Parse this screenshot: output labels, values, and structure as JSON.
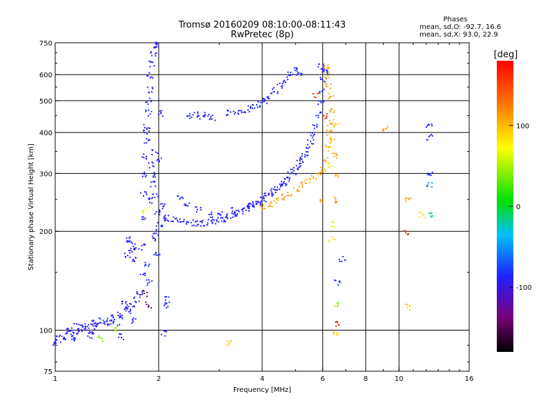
{
  "chart_data": {
    "type": "scatter",
    "title": "Tromsø 20160209 08:10:00-08:11:43",
    "subtitle": "RwPretec (8p)",
    "xlabel": "Frequency [MHz]",
    "ylabel": "Stationary phase Virtual Height [km]",
    "x_scale": "log",
    "y_scale": "log",
    "xlim": [
      1,
      16
    ],
    "ylim": [
      75,
      750
    ],
    "x_ticks": [
      1,
      2,
      4,
      6,
      8,
      10,
      16
    ],
    "x_tick_labels": [
      "1",
      "2",
      "4",
      "6",
      "8",
      "10",
      "16"
    ],
    "y_ticks": [
      75,
      100,
      200,
      300,
      400,
      500,
      600,
      750
    ],
    "y_tick_labels": [
      "75",
      "100",
      "200",
      "300",
      "400",
      "500",
      "600",
      "750"
    ],
    "grid": true,
    "colorbar": {
      "label": "[deg]",
      "range": [
        -180,
        180
      ],
      "ticks": [
        100,
        0,
        -100
      ],
      "tick_labels": [
        "100",
        "0",
        "-100"
      ],
      "colors": [
        "#000000",
        "#7a007a",
        "#2020ff",
        "#00c0ff",
        "#00e000",
        "#ffff00",
        "#ff8000",
        "#ff0000"
      ]
    },
    "stats": {
      "heading": "Phases",
      "line_o": "mean, sd,O: -92.7, 16.6",
      "line_x": "mean, sd,X:  93.0, 22.9"
    },
    "series": [
      {
        "values": [
          [
            1.0,
            92,
            -100
          ],
          [
            1.02,
            96,
            -105
          ],
          [
            1.05,
            94,
            -98
          ],
          [
            1.08,
            99,
            -110
          ],
          [
            1.1,
            101,
            -95
          ],
          [
            1.13,
            97,
            -102
          ],
          [
            1.15,
            103,
            -100
          ],
          [
            1.18,
            99,
            -108
          ],
          [
            1.2,
            102,
            -96
          ],
          [
            1.22,
            105,
            -100
          ],
          [
            1.25,
            100,
            -103
          ],
          [
            1.28,
            106,
            -99
          ],
          [
            1.3,
            103,
            -101
          ],
          [
            1.33,
            104,
            -107
          ],
          [
            1.36,
            108,
            -94
          ],
          [
            1.4,
            105,
            -100
          ],
          [
            1.43,
            107,
            -103
          ],
          [
            1.46,
            110,
            -98
          ],
          [
            1.5,
            106,
            -102
          ],
          [
            1.53,
            112,
            -100
          ],
          [
            1.56,
            109,
            -97
          ],
          [
            1.6,
            117,
            -104
          ],
          [
            1.63,
            114,
            -100
          ],
          [
            1.66,
            120,
            -99
          ],
          [
            1.7,
            108,
            -101
          ],
          [
            1.72,
            124,
            -95
          ],
          [
            1.75,
            130,
            -100
          ],
          [
            1.58,
            122,
            -103
          ],
          [
            1.48,
            101,
            40
          ],
          [
            1.35,
            95,
            35
          ],
          [
            1.55,
            96,
            -100
          ],
          [
            1.12,
            95,
            -98
          ],
          [
            1.26,
            97,
            -101
          ]
        ]
      },
      {
        "values": [
          [
            1.62,
            170,
            -100
          ],
          [
            1.64,
            185,
            -98
          ],
          [
            1.66,
            175,
            -102
          ],
          [
            1.68,
            180,
            -100
          ],
          [
            1.63,
            190,
            -96
          ],
          [
            1.7,
            165,
            -101
          ]
        ]
      },
      {
        "values": [
          [
            1.78,
            180,
            -100
          ],
          [
            1.8,
            220,
            -95
          ],
          [
            1.8,
            260,
            -102
          ],
          [
            1.82,
            300,
            -100
          ],
          [
            1.82,
            340,
            -98
          ],
          [
            1.84,
            380,
            -104
          ],
          [
            1.84,
            420,
            -100
          ],
          [
            1.86,
            460,
            -96
          ],
          [
            1.86,
            500,
            -101
          ],
          [
            1.88,
            540,
            -103
          ],
          [
            1.88,
            600,
            -99
          ],
          [
            1.9,
            650,
            -100
          ],
          [
            1.92,
            700,
            -97
          ],
          [
            1.94,
            740,
            -104
          ],
          [
            1.96,
            740,
            -100
          ],
          [
            1.9,
            250,
            -100
          ],
          [
            1.92,
            300,
            -99
          ],
          [
            1.94,
            350,
            -101
          ],
          [
            1.96,
            200,
            -98
          ],
          [
            1.98,
            230,
            -102
          ],
          [
            2.0,
            210,
            -100
          ],
          [
            1.85,
            160,
            -96
          ],
          [
            1.87,
            140,
            -100
          ],
          [
            1.83,
            400,
            -103
          ],
          [
            1.89,
            320,
            -98
          ],
          [
            1.91,
            280,
            -100
          ],
          [
            1.93,
            190,
            -101
          ],
          [
            1.95,
            260,
            -99
          ],
          [
            1.97,
            170,
            -100
          ],
          [
            2.0,
            330,
            -97
          ],
          [
            2.02,
            460,
            -100
          ],
          [
            2.05,
            240,
            -103
          ],
          [
            2.08,
            220,
            -99
          ],
          [
            2.1,
            120,
            -100
          ],
          [
            2.12,
            125,
            -98
          ],
          [
            2.06,
            98,
            -101
          ],
          [
            1.8,
            230,
            60
          ],
          [
            1.82,
            130,
            -160
          ],
          [
            1.86,
            120,
            -150
          ],
          [
            1.79,
            150,
            -100
          ]
        ]
      },
      {
        "values": [
          [
            2.1,
            220,
            -100
          ],
          [
            2.2,
            218,
            -98
          ],
          [
            2.3,
            216,
            -102
          ],
          [
            2.4,
            214,
            -100
          ],
          [
            2.5,
            213,
            -97
          ],
          [
            2.6,
            212,
            -101
          ],
          [
            2.7,
            213,
            -99
          ],
          [
            2.8,
            214,
            -100
          ],
          [
            2.9,
            215,
            -103
          ],
          [
            3.0,
            217,
            -100
          ],
          [
            3.1,
            219,
            -98
          ],
          [
            3.2,
            222,
            -101
          ],
          [
            3.3,
            225,
            -100
          ],
          [
            3.4,
            228,
            -97
          ],
          [
            3.5,
            232,
            -102
          ],
          [
            3.6,
            235,
            -100
          ],
          [
            3.7,
            239,
            -99
          ],
          [
            3.8,
            243,
            -101
          ],
          [
            3.9,
            247,
            -100
          ],
          [
            4.0,
            252,
            -98
          ],
          [
            4.1,
            257,
            -100
          ],
          [
            4.2,
            262,
            -102
          ],
          [
            4.3,
            266,
            -99
          ],
          [
            4.4,
            272,
            -100
          ],
          [
            4.5,
            278,
            -101
          ],
          [
            4.6,
            283,
            -98
          ],
          [
            4.7,
            290,
            -100
          ],
          [
            4.8,
            298,
            -103
          ],
          [
            4.9,
            305,
            -100
          ],
          [
            5.0,
            313,
            -97
          ],
          [
            5.1,
            323,
            -101
          ],
          [
            5.2,
            333,
            -100
          ],
          [
            5.3,
            346,
            -99
          ],
          [
            5.4,
            358,
            -102
          ],
          [
            5.5,
            376,
            -100
          ],
          [
            5.6,
            395,
            -98
          ],
          [
            5.7,
            420,
            -101
          ],
          [
            5.8,
            455,
            -100
          ],
          [
            5.9,
            500,
            -97
          ],
          [
            5.95,
            540,
            -100
          ],
          [
            6.0,
            580,
            -102
          ],
          [
            6.05,
            620,
            -99
          ],
          [
            2.3,
            255,
            -100
          ],
          [
            2.4,
            245,
            -98
          ],
          [
            2.6,
            235,
            -101
          ],
          [
            2.8,
            226,
            -100
          ],
          [
            3.0,
            228,
            -99
          ],
          [
            3.3,
            232,
            -102
          ],
          [
            3.6,
            241,
            -100
          ],
          [
            4.0,
            246,
            -98
          ],
          [
            2.45,
            450,
            -100
          ],
          [
            2.55,
            455,
            -98
          ],
          [
            2.65,
            448,
            -101
          ],
          [
            2.75,
            452,
            -100
          ],
          [
            2.85,
            445,
            -99
          ],
          [
            3.2,
            460,
            -102
          ],
          [
            3.35,
            465,
            -100
          ],
          [
            3.5,
            470,
            -98
          ],
          [
            3.65,
            475,
            -101
          ],
          [
            3.8,
            480,
            -100
          ],
          [
            3.95,
            490,
            -99
          ],
          [
            4.05,
            500,
            -103
          ]
        ]
      },
      {
        "values": [
          [
            4.0,
            238,
            105
          ],
          [
            4.2,
            243,
            110
          ],
          [
            4.4,
            250,
            100
          ],
          [
            4.6,
            256,
            115
          ],
          [
            4.8,
            262,
            108
          ],
          [
            5.0,
            270,
            102
          ],
          [
            5.2,
            278,
            110
          ],
          [
            5.4,
            285,
            105
          ],
          [
            5.6,
            292,
            98
          ],
          [
            5.8,
            300,
            112
          ],
          [
            6.0,
            310,
            104
          ],
          [
            6.1,
            330,
            110
          ],
          [
            6.2,
            360,
            100
          ],
          [
            6.25,
            400,
            115
          ],
          [
            6.3,
            430,
            106
          ],
          [
            6.35,
            470,
            108
          ],
          [
            6.3,
            520,
            104
          ],
          [
            6.2,
            560,
            110
          ],
          [
            6.15,
            600,
            100
          ],
          [
            6.1,
            640,
            112
          ],
          [
            5.9,
            250,
            108
          ],
          [
            6.4,
            380,
            102
          ],
          [
            6.5,
            340,
            110
          ],
          [
            6.6,
            300,
            95
          ],
          [
            6.5,
            250,
            115
          ],
          [
            6.05,
            450,
            160
          ],
          [
            5.7,
            520,
            150
          ],
          [
            6.3,
            320,
            60
          ],
          [
            6.55,
            420,
            90
          ]
        ]
      },
      {
        "values": [
          [
            4.2,
            520,
            -100
          ],
          [
            4.35,
            540,
            -98
          ],
          [
            4.5,
            560,
            -102
          ],
          [
            4.65,
            580,
            -100
          ],
          [
            4.8,
            600,
            -97
          ],
          [
            4.95,
            620,
            -101
          ],
          [
            5.1,
            605,
            -100
          ],
          [
            5.9,
            640,
            -99
          ],
          [
            6.05,
            630,
            -102
          ]
        ]
      },
      {
        "values": [
          [
            6.8,
            165,
            -100
          ],
          [
            6.6,
            140,
            -98
          ],
          [
            6.55,
            120,
            40
          ],
          [
            6.6,
            105,
            170
          ],
          [
            6.55,
            98,
            90
          ],
          [
            6.4,
            210,
            60
          ],
          [
            6.35,
            190,
            80
          ],
          [
            3.2,
            92,
            90
          ],
          [
            10.6,
            118,
            90
          ],
          [
            10.4,
            200,
            160
          ],
          [
            10.6,
            250,
            110
          ],
          [
            9.1,
            410,
            110
          ],
          [
            11.6,
            225,
            80
          ],
          [
            12.2,
            420,
            -100
          ],
          [
            12.2,
            390,
            -98
          ],
          [
            12.2,
            300,
            -100
          ],
          [
            12.2,
            280,
            -60
          ],
          [
            12.2,
            225,
            -20
          ]
        ]
      }
    ]
  }
}
